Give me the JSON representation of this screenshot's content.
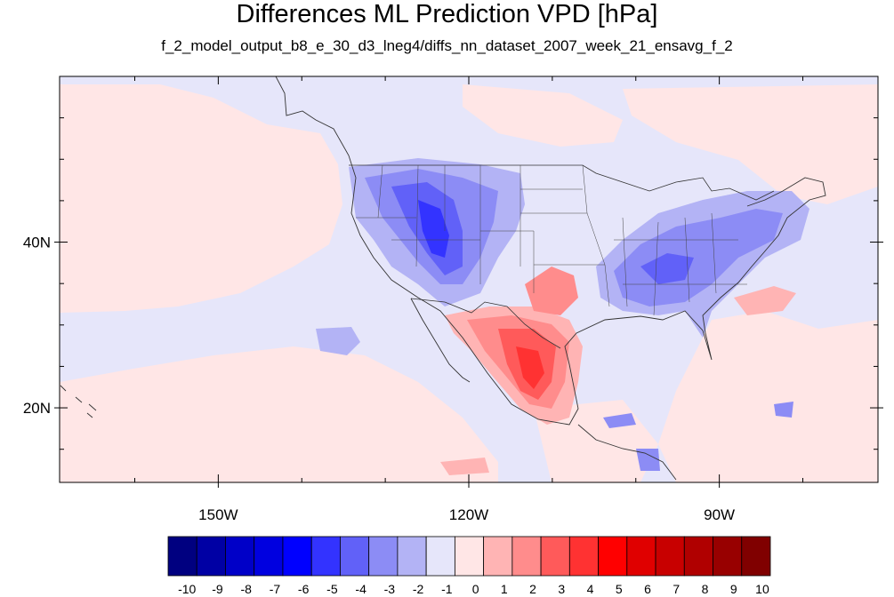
{
  "title": "Differences ML Prediction VPD [hPa]",
  "subtitle": "f_2_model_output_b8_e_30_d3_lneg4/diffs_nn_dataset_2007_week_21_ensavg_f_2",
  "map": {
    "lon_range": [
      -169,
      -71
    ],
    "lat_range": [
      11,
      60
    ],
    "background_color": "#e6e6fa",
    "lon_ticks": [
      {
        "value": -150,
        "label": "150W"
      },
      {
        "value": -120,
        "label": "120W"
      },
      {
        "value": -90,
        "label": "90W"
      }
    ],
    "lat_ticks": [
      {
        "value": 40,
        "label": "40N"
      },
      {
        "value": 20,
        "label": "20N"
      }
    ]
  },
  "colorbar": {
    "labels": [
      "-10",
      "-9",
      "-8",
      "-7",
      "-6",
      "-5",
      "-4",
      "-3",
      "-2",
      "-1",
      "0",
      "1",
      "2",
      "3",
      "4",
      "5",
      "6",
      "7",
      "8",
      "9",
      "10"
    ],
    "colors": [
      "#000080",
      "#0000a4",
      "#0000c8",
      "#0000e0",
      "#0000ff",
      "#3333ff",
      "#6161f8",
      "#8c8cf5",
      "#b3b3f5",
      "#e6e6fa",
      "#ffe6e6",
      "#ffb4b4",
      "#ff8c8c",
      "#ff5a5a",
      "#ff3232",
      "#ff0000",
      "#e00000",
      "#c80000",
      "#b00000",
      "#980000",
      "#800000"
    ]
  }
}
